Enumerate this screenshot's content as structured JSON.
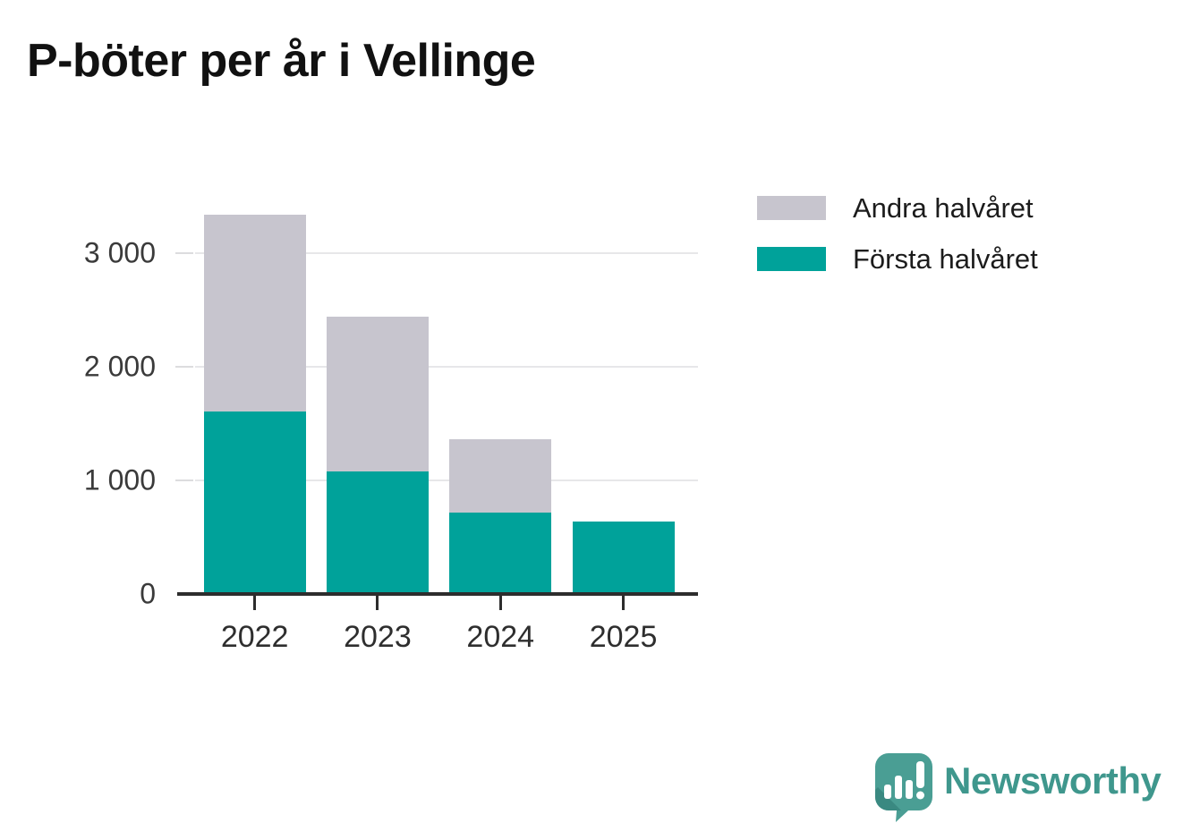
{
  "title": "P-böter per år i Vellinge",
  "chart_data": {
    "type": "bar",
    "stacked": true,
    "title": "P-böter per år i Vellinge",
    "xlabel": "",
    "ylabel": "",
    "categories": [
      "2022",
      "2023",
      "2024",
      "2025"
    ],
    "series": [
      {
        "name": "Första halvåret",
        "color": "#00a29a",
        "values": [
          1610,
          1080,
          720,
          640
        ]
      },
      {
        "name": "Andra halvåret",
        "color": "#c7c5ce",
        "values": [
          1730,
          1360,
          640,
          0
        ]
      }
    ],
    "ylim": [
      0,
      3400
    ],
    "yticks": [
      0,
      1000,
      2000,
      3000
    ],
    "ytick_labels": [
      "0",
      "1 000",
      "2 000",
      "3 000"
    ],
    "grid": true,
    "legend_position": "top-right"
  },
  "legend": {
    "items": [
      {
        "label": "Andra halvåret",
        "color": "#c7c5ce"
      },
      {
        "label": "Första halvåret",
        "color": "#00a29a"
      }
    ]
  },
  "footer": {
    "brand": "Newsworthy",
    "brand_text_color": "#3f978d",
    "logo_color": "#4a9e94",
    "logo_shadow_color": "#35827b"
  }
}
